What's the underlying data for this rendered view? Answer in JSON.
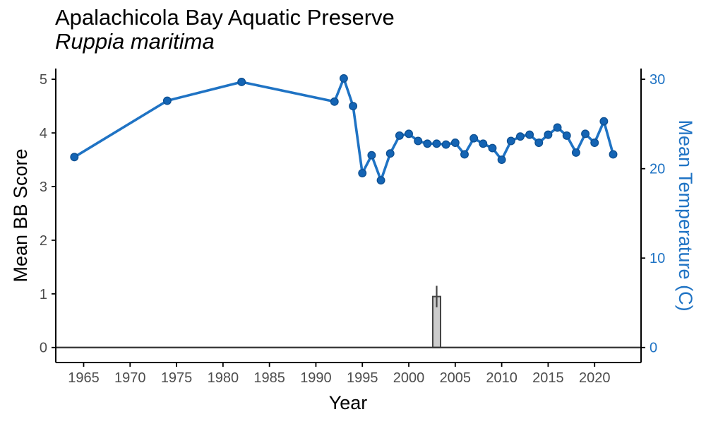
{
  "chart_data": {
    "type": "line",
    "title": "Apalachicola Bay Aquatic Preserve",
    "subtitle": "Ruppia maritima",
    "xlabel": "Year",
    "ylabel": "Mean BB Score",
    "y2label": "Mean Temperature (C)",
    "xlim": [
      1962,
      2025
    ],
    "ylim": [
      -0.28,
      5.2
    ],
    "y2lim": [
      -1.68,
      31.2
    ],
    "x_ticks": [
      1965,
      1970,
      1975,
      1980,
      1985,
      1990,
      1995,
      2000,
      2005,
      2010,
      2015,
      2020
    ],
    "y_ticks": [
      0,
      1,
      2,
      3,
      4,
      5
    ],
    "y2_ticks": [
      0,
      10,
      20,
      30
    ],
    "grid": false,
    "colors": {
      "temperature": "#1f73c4",
      "temperature_marker": "#1464b4",
      "bar_fill": "#cccccc",
      "bar_stroke": "#444444",
      "axis": "#000000",
      "y2_axis_text": "#1f73c4"
    },
    "bars": [
      {
        "x": 2003,
        "value": 0.95,
        "error_low": 0.75,
        "error_high": 1.15
      }
    ],
    "temperature": {
      "x": [
        1964,
        1974,
        1982,
        1992,
        1993,
        1994,
        1995,
        1996,
        1997,
        1998,
        1999,
        2000,
        2001,
        2002,
        2003,
        2004,
        2005,
        2006,
        2007,
        2008,
        2009,
        2010,
        2011,
        2012,
        2013,
        2014,
        2015,
        2016,
        2017,
        2018,
        2019,
        2020,
        2021,
        2022
      ],
      "y": [
        21.3,
        27.6,
        29.7,
        27.5,
        30.1,
        27.0,
        19.5,
        21.5,
        18.7,
        21.7,
        23.7,
        23.9,
        23.1,
        22.8,
        22.8,
        22.7,
        22.9,
        21.6,
        23.4,
        22.8,
        22.3,
        21.0,
        23.1,
        23.6,
        23.8,
        22.9,
        23.8,
        24.6,
        23.7,
        21.8,
        23.9,
        22.9,
        25.3,
        21.6
      ]
    }
  }
}
